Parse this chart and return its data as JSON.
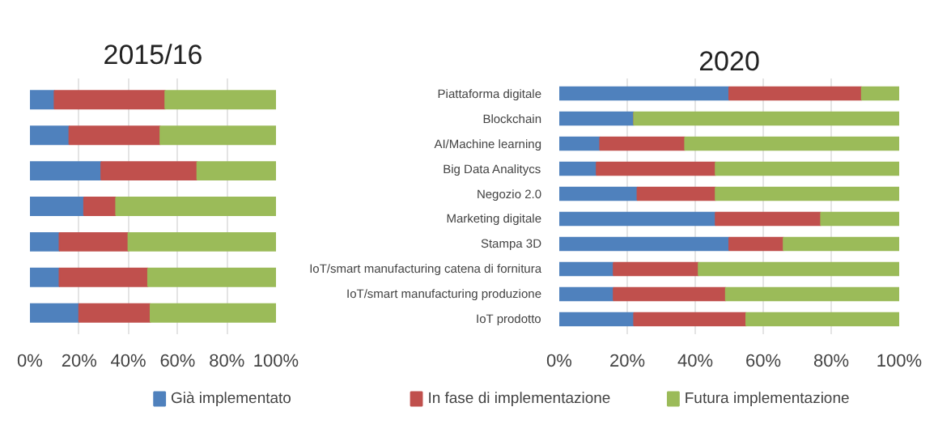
{
  "chart_data": [
    {
      "type": "bar",
      "title": "2015/16",
      "orientation": "horizontal",
      "stacked": true,
      "grid": "x",
      "tick_labels": "x",
      "legend": "bottom",
      "categories": [
        null,
        null,
        null,
        null,
        null,
        null,
        null
      ],
      "xlim": [
        0,
        100
      ],
      "xticks": [
        {
          "value": 0,
          "label": "0%"
        },
        {
          "value": 20,
          "label": "20%"
        },
        {
          "value": 40,
          "label": "40%"
        },
        {
          "value": 60,
          "label": "60%"
        },
        {
          "value": 80,
          "label": "80%"
        },
        {
          "value": 100,
          "label": "100%"
        }
      ],
      "series": [
        {
          "name": "Già implementato",
          "color": "#4f81bd",
          "values": [
            10,
            16,
            29,
            22,
            12,
            12,
            20
          ]
        },
        {
          "name": "In fase di implementazione",
          "color": "#c0504d",
          "values": [
            45,
            37,
            39,
            13,
            28,
            36,
            29
          ]
        },
        {
          "name": "Futura implementazione",
          "color": "#9bbb59",
          "values": [
            45,
            47,
            32,
            65,
            60,
            52,
            51
          ]
        }
      ]
    },
    {
      "type": "bar",
      "title": "2020",
      "orientation": "horizontal",
      "stacked": true,
      "grid": "x",
      "categories": [
        "Piattaforma digitale",
        "Blockchain",
        "AI/Machine learning",
        "Big Data Analitycs",
        "Negozio 2.0",
        "Marketing digitale",
        "Stampa 3D",
        "IoT/smart manufacturing catena di fornitura",
        "IoT/smart manufacturing produzione",
        "IoT prodotto"
      ],
      "xlim": [
        0,
        100
      ],
      "xticks": [
        {
          "value": 0,
          "label": "0%"
        },
        {
          "value": 20,
          "label": "20%"
        },
        {
          "value": 40,
          "label": "40%"
        },
        {
          "value": 60,
          "label": "60%"
        },
        {
          "value": 80,
          "label": "80%"
        },
        {
          "value": 100,
          "label": "100%"
        }
      ],
      "series": [
        {
          "color": "#4f81bd",
          "values": [
            50,
            22,
            12,
            11,
            23,
            46,
            50,
            16,
            16,
            22
          ]
        },
        {
          "color": "#c0504d",
          "values": [
            39,
            0,
            25,
            35,
            23,
            31,
            16,
            25,
            33,
            33
          ]
        },
        {
          "color": "#9bbb59",
          "values": [
            11,
            78,
            63,
            54,
            54,
            23,
            34,
            59,
            51,
            45
          ]
        }
      ]
    }
  ]
}
